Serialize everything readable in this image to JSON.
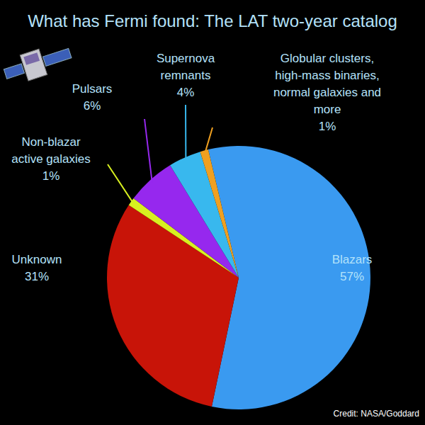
{
  "chart_data": {
    "type": "pie",
    "title": "What has Fermi found: The LAT two-year catalog",
    "categories": [
      "Blazars",
      "Unknown",
      "Non-blazar active galaxies",
      "Pulsars",
      "Supernova remnants",
      "Globular clusters, high-mass binaries, normal galaxies and more"
    ],
    "values": [
      57,
      31,
      1,
      6,
      4,
      1
    ],
    "value_labels": [
      "57%",
      "31%",
      "1%",
      "6%",
      "4%",
      "1%"
    ],
    "colors": [
      "#3a9af0",
      "#c81408",
      "#d8f020",
      "#9628ee",
      "#38b8ee",
      "#f0a020"
    ],
    "data_labels": true,
    "annotations": [
      "Credit: NASA/Goddard"
    ]
  }
}
